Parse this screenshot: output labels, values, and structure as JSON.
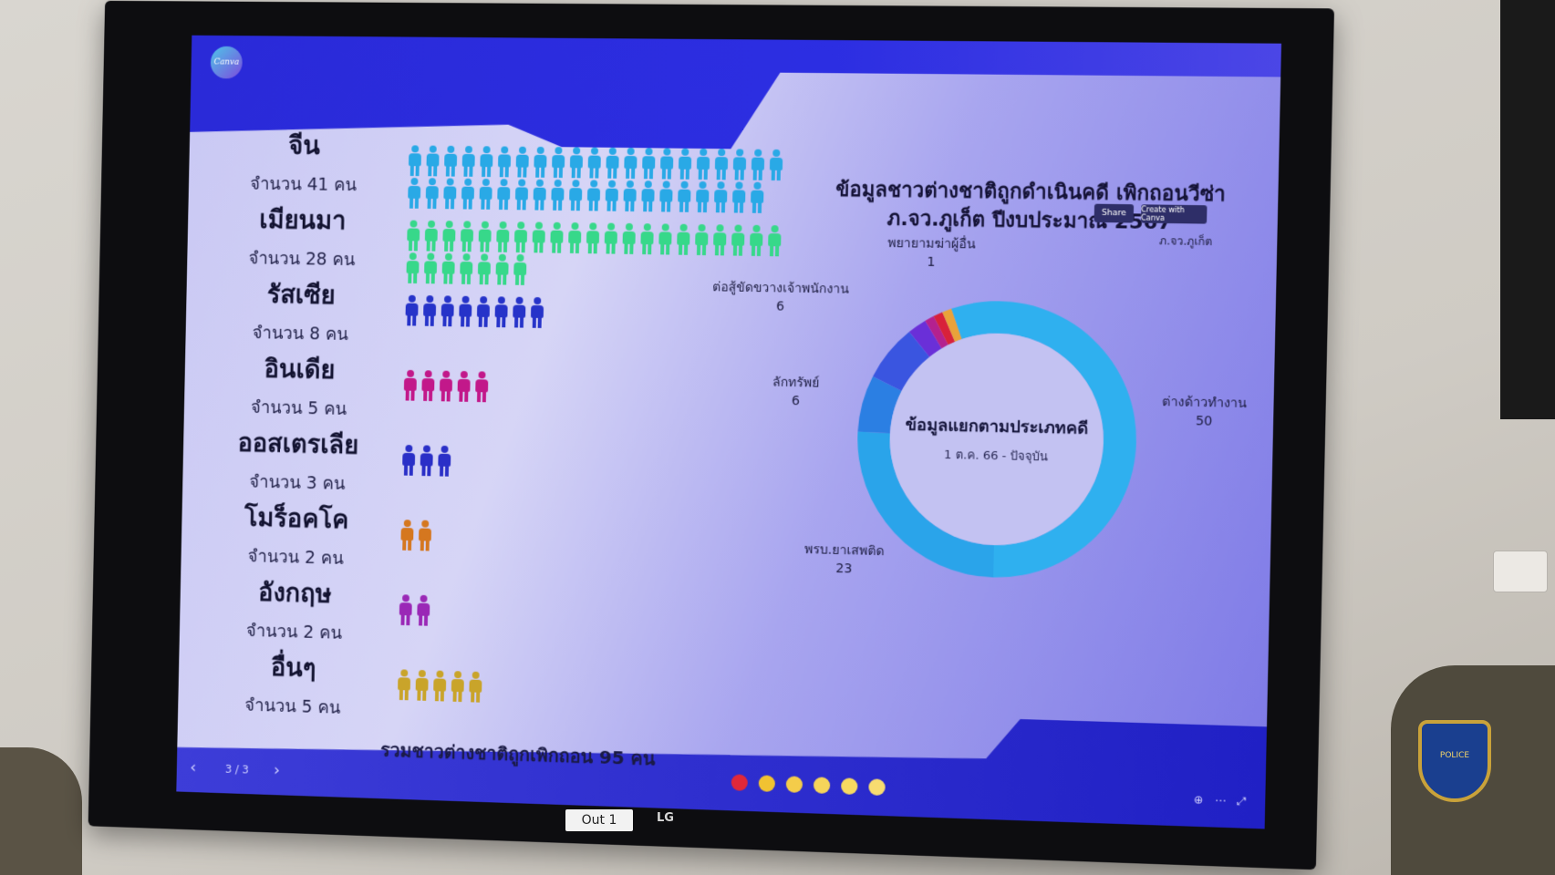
{
  "presentation": {
    "logo_text": "Canva",
    "title": "ข้อมูลชาวต่างชาติถูกดำเนินคดี เพิกถอนวีซ่า ภ.จว.ภูเก็ต ปีงบประมาณ 2567",
    "share_label": "Share",
    "create_label": "Create with Canva",
    "org_label": "ภ.จว.ภูเก็ต",
    "total": "รวมชาวต่างชาติถูกเพิกถอน 95 คน",
    "page_indicator": "3 / 3",
    "countries": [
      {
        "name": "จีน",
        "count_text": "จำนวน 41 คน",
        "count": 41,
        "color": "#29a9e6"
      },
      {
        "name": "เมียนมา",
        "count_text": "จำนวน 28 คน",
        "count": 28,
        "color": "#37d88a"
      },
      {
        "name": "รัสเซีย",
        "count_text": "จำนวน 8 คน",
        "count": 8,
        "color": "#2633c9"
      },
      {
        "name": "อินเดีย",
        "count_text": "จำนวน 5 คน",
        "count": 5,
        "color": "#c2188a"
      },
      {
        "name": "ออสเตรเลีย",
        "count_text": "จำนวน 3 คน",
        "count": 3,
        "color": "#2a2fc7"
      },
      {
        "name": "โมร็อคโค",
        "count_text": "จำนวน 2 คน",
        "count": 2,
        "color": "#d5771f"
      },
      {
        "name": "อังกฤษ",
        "count_text": "จำนวน 2 คน",
        "count": 2,
        "color": "#9a28b6"
      },
      {
        "name": "อื่นๆ",
        "count_text": "จำนวน 5 คน",
        "count": 5,
        "color": "#c9a42a"
      }
    ]
  },
  "chart_data": {
    "type": "pie",
    "center_title": "ข้อมูลแยกตามประเภทคดี",
    "center_subtitle": "1 ต.ค. 66 - ปัจจุบัน",
    "slices": [
      {
        "label": "ต่างด้าวทำงาน",
        "value": 50,
        "color": "#2fb0ef"
      },
      {
        "label": "พรบ.ยาเสพติด",
        "value": 23,
        "color": "#2aa4ea"
      },
      {
        "label": "ลักทรัพย์",
        "value": 6,
        "color": "#2b7fe3"
      },
      {
        "label": "ต่อสู้ขัดขวางเจ้าพนักงาน",
        "value": 6,
        "color": "#3a55e0"
      },
      {
        "label": "",
        "value": 2,
        "color": "#6a2fd8"
      },
      {
        "label": "",
        "value": 1,
        "color": "#b4218f"
      },
      {
        "label": "",
        "value": 1,
        "color": "#d8213a"
      },
      {
        "label": "พยายามฆ่าผู้อื่น",
        "value": 1,
        "color": "#e9a23a"
      }
    ]
  },
  "tv": {
    "input_label": "Out 1",
    "brand": "LG"
  }
}
